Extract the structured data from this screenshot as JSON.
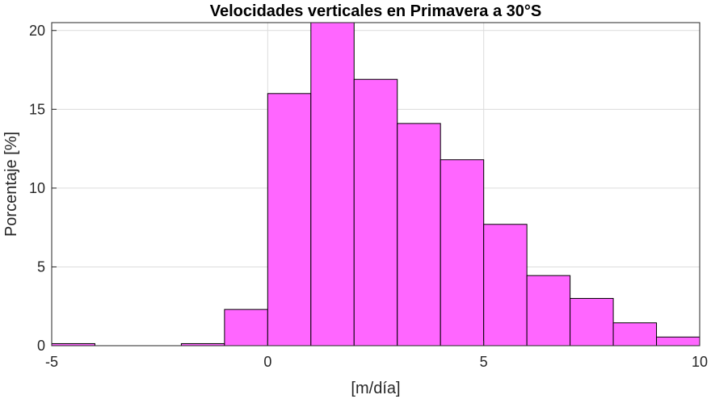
{
  "chart_data": {
    "type": "bar",
    "title": "Velocidades verticales en Primavera a 30°S",
    "xlabel": "[m/día]",
    "ylabel": "Porcentaje [%]",
    "xlim": [
      -5,
      10
    ],
    "ylim": [
      0,
      20.5
    ],
    "grid": true,
    "bar_color": "#ff66ff",
    "edge_color": "#000000",
    "bin_width": 1,
    "bins": [
      {
        "x0": -5,
        "x1": -4,
        "value": 0.13
      },
      {
        "x0": -4,
        "x1": -3,
        "value": 0
      },
      {
        "x0": -3,
        "x1": -2,
        "value": 0
      },
      {
        "x0": -2,
        "x1": -1,
        "value": 0.13
      },
      {
        "x0": -1,
        "x1": 0,
        "value": 2.3
      },
      {
        "x0": 0,
        "x1": 1,
        "value": 16.0
      },
      {
        "x0": 1,
        "x1": 2,
        "value": 20.5
      },
      {
        "x0": 2,
        "x1": 3,
        "value": 16.9
      },
      {
        "x0": 3,
        "x1": 4,
        "value": 14.1
      },
      {
        "x0": 4,
        "x1": 5,
        "value": 11.8
      },
      {
        "x0": 5,
        "x1": 6,
        "value": 7.7
      },
      {
        "x0": 6,
        "x1": 7,
        "value": 4.45
      },
      {
        "x0": 7,
        "x1": 8,
        "value": 3.0
      },
      {
        "x0": 8,
        "x1": 9,
        "value": 1.45
      },
      {
        "x0": 9,
        "x1": 10,
        "value": 0.55
      }
    ],
    "x_ticks": [
      {
        "value": -5,
        "label": "-5"
      },
      {
        "value": 0,
        "label": "0"
      },
      {
        "value": 5,
        "label": "5"
      },
      {
        "value": 10,
        "label": "10"
      }
    ],
    "y_ticks": [
      {
        "value": 0,
        "label": "0"
      },
      {
        "value": 5,
        "label": "5"
      },
      {
        "value": 10,
        "label": "10"
      },
      {
        "value": 15,
        "label": "15"
      },
      {
        "value": 20,
        "label": "20"
      }
    ]
  }
}
